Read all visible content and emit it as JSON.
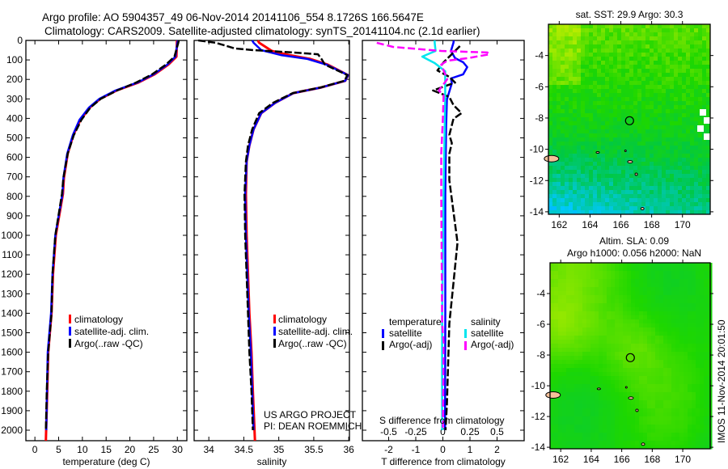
{
  "header": {
    "title_line1": "Argo profile: AO 5904357_49 06-Nov-2014 20141106_554 8.1726S 166.5647E",
    "title_line2": "Climatology: CARS2009. Satellite-adjusted climatology: synTS_20141104.nc (2.1d earlier)"
  },
  "credits": {
    "project": "US ARGO PROJECT",
    "pi": "PI: DEAN ROEMMICH",
    "timestamp": "IMOS 11-Nov-2014 20:01:50"
  },
  "colors": {
    "climatology": "#ff0000",
    "satellite": "#0000ff",
    "argo": "#000000",
    "sal_satellite": "#00e5ee",
    "sal_argo": "#ff00ff"
  },
  "chart_data": [
    {
      "type": "line",
      "name": "temperature-profile",
      "xlabel": "temperature (deg C)",
      "xlim": [
        -1.9,
        32
      ],
      "xticks": [
        "0",
        "5",
        "10",
        "15",
        "20",
        "25",
        "30"
      ],
      "xtick_values": [
        0,
        5,
        10,
        15,
        20,
        25,
        30
      ],
      "ylim": [
        2054,
        0
      ],
      "yticks": [
        "0",
        "100",
        "200",
        "300",
        "400",
        "500",
        "600",
        "700",
        "800",
        "900",
        "1000",
        "1100",
        "1200",
        "1300",
        "1400",
        "1500",
        "1600",
        "1700",
        "1800",
        "1900",
        "2000"
      ],
      "ytick_values": [
        0,
        100,
        200,
        300,
        400,
        500,
        600,
        700,
        800,
        900,
        1000,
        1100,
        1200,
        1300,
        1400,
        1500,
        1600,
        1700,
        1800,
        1900,
        2000
      ],
      "legend": [
        "climatology",
        "satellite-adj. clim.",
        "Argo(..raw -QC)"
      ],
      "series": [
        {
          "name": "climatology",
          "style": "climatology",
          "depth": [
            0,
            12,
            83,
            124,
            174,
            216,
            257,
            299,
            344,
            407,
            485,
            581,
            705,
            788,
            1000,
            1200,
            1400,
            1600,
            1800,
            2054
          ],
          "values": [
            29.9,
            29.9,
            29.8,
            28.1,
            25.2,
            21.8,
            17.2,
            13.8,
            11.6,
            9.6,
            8.1,
            6.9,
            6.1,
            5.9,
            4.4,
            3.8,
            3.5,
            2.8,
            2.6,
            2.3
          ]
        },
        {
          "name": "satellite-adj. clim.",
          "style": "satellite",
          "depth": [
            0,
            12,
            83,
            124,
            174,
            216,
            257,
            299,
            344,
            407,
            485,
            581,
            705,
            788,
            1000,
            1200,
            1400,
            1600,
            1800,
            2000
          ],
          "values": [
            30.1,
            30.0,
            29.6,
            27.9,
            25.0,
            21.6,
            17.0,
            13.6,
            11.4,
            9.4,
            8.0,
            6.8,
            6.0,
            5.8,
            4.3,
            3.7,
            3.4,
            2.7,
            2.55,
            2.4
          ]
        },
        {
          "name": "Argo(..raw -QC)",
          "style": "argo",
          "depth": [
            0,
            12,
            83,
            124,
            174,
            216,
            257,
            299,
            344,
            407,
            485,
            581,
            705,
            788,
            1000,
            1200,
            1400,
            1600,
            1800,
            2000
          ],
          "values": [
            30.3,
            30.2,
            29.4,
            27.6,
            24.7,
            21.3,
            17.3,
            13.9,
            11.7,
            9.8,
            8.2,
            6.9,
            6.0,
            5.7,
            4.3,
            3.7,
            3.5,
            2.8,
            2.5,
            2.3
          ]
        }
      ]
    },
    {
      "type": "line",
      "name": "salinity-profile",
      "xlabel": "salinity",
      "xlim": [
        33.79,
        36.01
      ],
      "xticks": [
        "34",
        "34.5",
        "35",
        "35.5",
        "36"
      ],
      "xtick_values": [
        34,
        34.5,
        35,
        35.5,
        36
      ],
      "ylim": [
        2054,
        0
      ],
      "legend": [
        "climatology",
        "satellite-adj. clim.",
        "Argo(..raw -QC)"
      ],
      "series": [
        {
          "name": "climatology",
          "style": "climatology",
          "depth": [
            0,
            12,
            54,
            75,
            95,
            124,
            178,
            207,
            241,
            270,
            320,
            373,
            456,
            539,
            622,
            788,
            1000,
            1400,
            1600,
            1800,
            2054
          ],
          "values": [
            34.7,
            34.72,
            34.9,
            35.15,
            35.45,
            35.7,
            35.99,
            35.95,
            35.61,
            35.21,
            34.95,
            34.75,
            34.64,
            34.58,
            34.54,
            34.53,
            34.54,
            34.58,
            34.61,
            34.63,
            34.66
          ]
        },
        {
          "name": "satellite-adj. clim.",
          "style": "satellite",
          "depth": [
            0,
            12,
            50,
            75,
            95,
            124,
            178,
            207,
            241,
            270,
            320,
            373,
            456,
            539,
            622,
            788,
            1000,
            1400,
            1600,
            1800,
            2000
          ],
          "values": [
            34.62,
            34.64,
            34.75,
            35.03,
            35.41,
            35.68,
            35.99,
            35.95,
            35.61,
            35.21,
            34.95,
            34.75,
            34.64,
            34.58,
            34.54,
            34.52,
            34.53,
            34.57,
            34.6,
            34.62,
            34.64
          ]
        },
        {
          "name": "Argo(..raw -QC)",
          "style": "argo",
          "depth": [
            0,
            12,
            41,
            50,
            62,
            71,
            95,
            124,
            178,
            207,
            241,
            270,
            320,
            373,
            456,
            539,
            622,
            788,
            1000,
            1400,
            1600,
            1800,
            2000
          ],
          "values": [
            33.85,
            34.1,
            34.37,
            34.64,
            35.21,
            35.56,
            35.61,
            35.66,
            35.98,
            35.94,
            35.6,
            35.2,
            34.92,
            34.72,
            34.62,
            34.56,
            34.53,
            34.51,
            34.52,
            34.56,
            34.58,
            34.61,
            34.63
          ]
        }
      ]
    },
    {
      "type": "line",
      "name": "difference-profile",
      "xlabel": "T difference from climatology",
      "xlim": [
        -2.97,
        3.0
      ],
      "xticks": [
        "-2",
        "-1",
        "0",
        "1",
        "2"
      ],
      "xtick_values": [
        -2,
        -1,
        0,
        1,
        2
      ],
      "s_label": "S difference from climatology",
      "s_xticks": [
        "-0.5",
        "-0.25",
        "0",
        "0.25",
        "0.5"
      ],
      "s_xtick_values": [
        -0.5,
        -0.25,
        0,
        0.25,
        0.5
      ],
      "ylim": [
        2054,
        0
      ],
      "legend": {
        "temperature": "temperature",
        "salinity": "salinity",
        "satellite": "satellite",
        "argo": "Argo(-adj)"
      },
      "series": [
        {
          "name": "temperature satellite",
          "quantity": "T",
          "style": "satellite",
          "depth": [
            0,
            12,
            54,
            91,
            112,
            137,
            174,
            195,
            220,
            303,
            444,
            788,
            1400,
            2000
          ],
          "values": [
            0.4,
            0.39,
            0.3,
            0.45,
            0.75,
            0.9,
            0.75,
            0.3,
            0.33,
            0.15,
            0.12,
            0.09,
            0.09,
            0.08
          ]
        },
        {
          "name": "temperature Argo(-adj)",
          "quantity": "T",
          "style": "argo",
          "depth": [
            29,
            54,
            83,
            112,
            154,
            187,
            216,
            257,
            290,
            332,
            373,
            402,
            485,
            527,
            581,
            718,
            1037,
            1245,
            1452,
            1867,
            2000
          ],
          "values": [
            0.63,
            0.45,
            0.24,
            0.03,
            -0.2,
            0.24,
            0.45,
            -0.36,
            0.24,
            0.39,
            0.69,
            0.39,
            0.24,
            0.33,
            0.24,
            0.24,
            0.54,
            0.39,
            0.24,
            0.15,
            0.1
          ]
        },
        {
          "name": "salinity satellite",
          "quantity": "S",
          "style": "sal_satellite",
          "depth": [
            0,
            12,
            54,
            83,
            116,
            158,
            303,
            788,
            1400,
            2000
          ],
          "values": [
            -0.075,
            -0.075,
            -0.067,
            -0.19,
            -0.075,
            0.022,
            0.022,
            0.007,
            -0.007,
            -0.007
          ]
        },
        {
          "name": "salinity Argo(-adj)",
          "quantity": "S",
          "style": "sal_argo",
          "depth": [
            12,
            33,
            54,
            62,
            71,
            91,
            104,
            124,
            199,
            257,
            282,
            402,
            581,
            788,
            1450,
            1550,
            2000
          ],
          "values": [
            -0.61,
            -0.46,
            -0.015,
            0.41,
            0.43,
            0.23,
            0.04,
            -0.015,
            0.04,
            -0.037,
            0.007,
            0,
            -0.015,
            -0.015,
            -0.007,
            0.007,
            0.0
          ]
        }
      ]
    },
    {
      "type": "heatmap",
      "name": "sst-map",
      "title": "sat. SST: 29.9 Argo: 30.3",
      "lon_range": [
        161.3,
        171.8
      ],
      "lat_range": [
        -14.16,
        -2.0
      ],
      "xticks": [
        "162",
        "164",
        "166",
        "168",
        "170"
      ],
      "xtick_values": [
        162,
        164,
        166,
        168,
        170
      ],
      "yticks": [
        "-4",
        "-6",
        "-8",
        "-10",
        "-12",
        "-14"
      ],
      "ytick_values": [
        -4,
        -6,
        -8,
        -10,
        -12,
        -14
      ],
      "argo_position": {
        "lon": 166.5647,
        "lat": -8.1726
      }
    },
    {
      "type": "heatmap",
      "name": "sla-map",
      "title": "Altim. SLA: 0.09",
      "subtitle": "Argo h1000: 0.056 h2000: NaN",
      "lon_range": [
        161.3,
        171.8
      ],
      "lat_range": [
        -14.1,
        -2.0
      ],
      "xticks": [
        "162",
        "164",
        "166",
        "168",
        "170"
      ],
      "xtick_values": [
        162,
        164,
        166,
        168,
        170
      ],
      "yticks": [
        "-4",
        "-6",
        "-8",
        "-10",
        "-12",
        "-14"
      ],
      "ytick_values": [
        -4,
        -6,
        -8,
        -10,
        -12,
        -14
      ],
      "argo_position": {
        "lon": 166.5647,
        "lat": -8.1726
      }
    }
  ]
}
